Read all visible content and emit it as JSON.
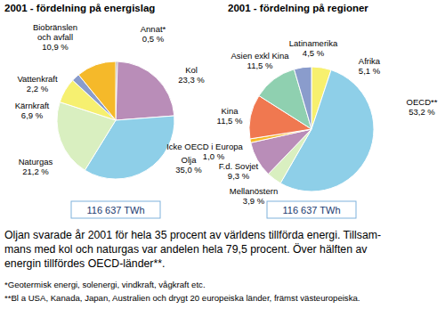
{
  "chart_data": [
    {
      "type": "pie",
      "title": "2001 - fördelning på energislag",
      "categories": [
        "Annat*",
        "Kol",
        "Olja",
        "Naturgas",
        "Kärnkraft",
        "Vattenkraft",
        "Biobränslen och avfall"
      ],
      "values": [
        0.5,
        23.3,
        35.0,
        21.2,
        6.9,
        2.2,
        10.9
      ],
      "value_labels": [
        "0,5 %",
        "23,3 %",
        "35,0 %",
        "21,2 %",
        "6,9 %",
        "2,2 %",
        "10,9 %"
      ],
      "colors": [
        "#3a3a3a",
        "#b98db8",
        "#8ecfe8",
        "#d9efc0",
        "#f6f070",
        "#8a9ccc",
        "#f5b92a"
      ],
      "data_labels": true,
      "annotations": [
        "116 637 TWh"
      ]
    },
    {
      "type": "pie",
      "title": "2001 - fördelning på regioner",
      "categories": [
        "Afrika",
        "OECD**",
        "Mellanöstern",
        "F.d. Sovjet",
        "Icke OECD i Europa",
        "Kina",
        "Asien exkl Kina",
        "Latinamerika"
      ],
      "values": [
        5.1,
        53.2,
        3.9,
        9.3,
        1.0,
        11.5,
        11.5,
        4.5
      ],
      "value_labels": [
        "5,1 %",
        "53,2 %",
        "3,9 %",
        "9,3 %",
        "1,0 %",
        "11,5 %",
        "11,5 %",
        "4,5 %"
      ],
      "colors": [
        "#f7f06e",
        "#8ecfe8",
        "#d9efc0",
        "#b98db8",
        "#f5b92a",
        "#f07850",
        "#8fd0b0",
        "#8a9ccc"
      ],
      "data_labels": true,
      "annotations": [
        "116 637 TWh"
      ]
    }
  ],
  "text": {
    "paragraph": [
      "Oljan svarade år 2001 för hela 35 procent av världens tillförda energi. Tillsam-",
      "mans med kol och naturgas var andelen hela 79,5 procent. Över hälften av",
      "energin tillfördes OECD-länder**."
    ],
    "footnotes": [
      "*Geotermisk energi, solenergi, vindkraft, vågkraft etc.",
      "**Bl a USA, Kanada, Japan, Australien och drygt 20 europeiska länder, främst västeuropeiska."
    ]
  }
}
